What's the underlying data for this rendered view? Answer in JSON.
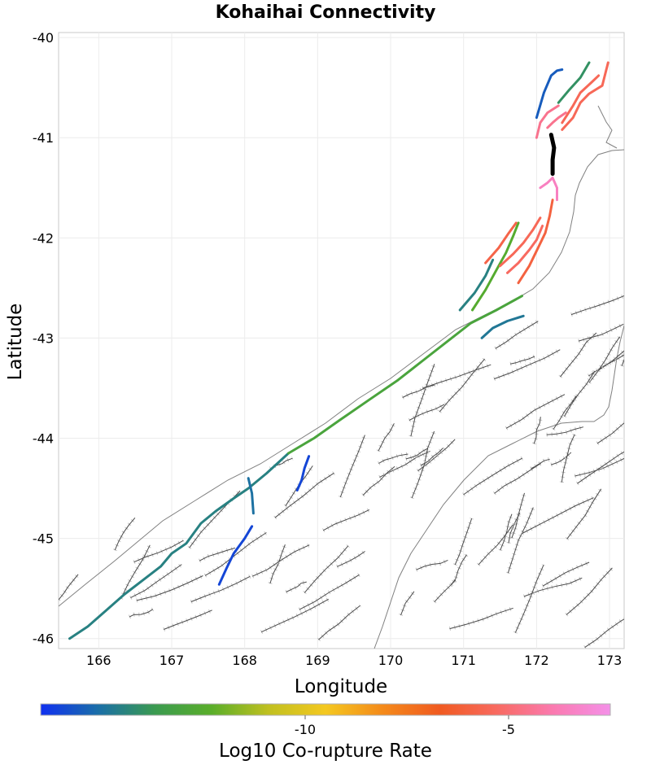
{
  "chart_data": {
    "type": "map",
    "title": "Kohaihai Connectivity",
    "xlabel": "Longitude",
    "ylabel": "Latitude",
    "xlim": [
      165.45,
      173.2
    ],
    "ylim": [
      -46.1,
      -39.95
    ],
    "xticks": [
      166,
      167,
      168,
      169,
      170,
      171,
      172,
      173
    ],
    "yticks": [
      -40,
      -41,
      -42,
      -43,
      -44,
      -45,
      -46
    ],
    "grid": true,
    "colorbar": {
      "label": "Log10 Co-rupture Rate",
      "min": -16.5,
      "max": -2.5,
      "ticks": [
        -10,
        -5
      ],
      "colors": [
        "#1030f0",
        "#1a6ea8",
        "#3a9a50",
        "#5aae2a",
        "#c0c020",
        "#f4c820",
        "#f48a1a",
        "#f05a20",
        "#f86a60",
        "#fa7ab0",
        "#f490e8"
      ]
    },
    "source_fault": {
      "name": "Kohaihai",
      "color": "#000000",
      "points": [
        [
          172.2,
          -40.97
        ],
        [
          172.24,
          -41.1
        ],
        [
          172.22,
          -41.22
        ],
        [
          172.22,
          -41.36
        ]
      ]
    },
    "corupture_sections": [
      {
        "value": -14.5,
        "points": [
          [
            165.6,
            -46.0
          ],
          [
            165.85,
            -45.88
          ],
          [
            166.1,
            -45.72
          ],
          [
            166.35,
            -45.56
          ],
          [
            166.6,
            -45.42
          ],
          [
            166.85,
            -45.28
          ],
          [
            167.0,
            -45.15
          ],
          [
            167.2,
            -45.05
          ],
          [
            167.4,
            -44.85
          ],
          [
            167.6,
            -44.73
          ],
          [
            167.85,
            -44.6
          ],
          [
            168.05,
            -44.5
          ],
          [
            168.3,
            -44.35
          ],
          [
            168.6,
            -44.15
          ]
        ]
      },
      {
        "value": -13.0,
        "points": [
          [
            168.6,
            -44.15
          ],
          [
            168.95,
            -44.0
          ],
          [
            169.3,
            -43.82
          ],
          [
            169.7,
            -43.62
          ],
          [
            170.1,
            -43.42
          ],
          [
            170.45,
            -43.22
          ],
          [
            170.8,
            -43.02
          ],
          [
            171.1,
            -42.85
          ],
          [
            171.45,
            -42.72
          ],
          [
            171.8,
            -42.58
          ]
        ]
      },
      {
        "value": -16.0,
        "points": [
          [
            167.65,
            -45.46
          ],
          [
            167.75,
            -45.3
          ],
          [
            167.85,
            -45.15
          ],
          [
            168.0,
            -45.0
          ],
          [
            168.1,
            -44.88
          ]
        ]
      },
      {
        "value": -16.0,
        "points": [
          [
            168.72,
            -44.52
          ],
          [
            168.78,
            -44.42
          ],
          [
            168.82,
            -44.3
          ],
          [
            168.88,
            -44.18
          ]
        ]
      },
      {
        "value": -15.0,
        "points": [
          [
            168.05,
            -44.4
          ],
          [
            168.1,
            -44.55
          ],
          [
            168.12,
            -44.75
          ]
        ]
      },
      {
        "value": -14.8,
        "points": [
          [
            171.25,
            -43.0
          ],
          [
            171.4,
            -42.9
          ],
          [
            171.6,
            -42.83
          ],
          [
            171.82,
            -42.78
          ]
        ]
      },
      {
        "value": -14.5,
        "points": [
          [
            170.95,
            -42.72
          ],
          [
            171.15,
            -42.55
          ],
          [
            171.3,
            -42.38
          ],
          [
            171.4,
            -42.22
          ]
        ]
      },
      {
        "value": -12.5,
        "points": [
          [
            171.12,
            -42.72
          ],
          [
            171.3,
            -42.52
          ],
          [
            171.45,
            -42.32
          ],
          [
            171.58,
            -42.15
          ],
          [
            171.68,
            -41.98
          ],
          [
            171.75,
            -41.85
          ]
        ]
      },
      {
        "value": -5.8,
        "points": [
          [
            171.3,
            -42.25
          ],
          [
            171.48,
            -42.1
          ],
          [
            171.62,
            -41.95
          ],
          [
            171.72,
            -41.85
          ]
        ]
      },
      {
        "value": -5.5,
        "points": [
          [
            171.5,
            -42.28
          ],
          [
            171.68,
            -42.16
          ],
          [
            171.82,
            -42.05
          ],
          [
            171.95,
            -41.92
          ],
          [
            172.05,
            -41.8
          ]
        ]
      },
      {
        "value": -5.3,
        "points": [
          [
            171.6,
            -42.35
          ],
          [
            171.75,
            -42.25
          ],
          [
            171.9,
            -42.12
          ],
          [
            172.0,
            -42.02
          ],
          [
            172.08,
            -41.88
          ]
        ]
      },
      {
        "value": -6.0,
        "points": [
          [
            171.75,
            -42.45
          ],
          [
            171.9,
            -42.28
          ],
          [
            172.02,
            -42.1
          ],
          [
            172.12,
            -41.95
          ],
          [
            172.18,
            -41.78
          ],
          [
            172.22,
            -41.62
          ]
        ]
      },
      {
        "value": -3.5,
        "points": [
          [
            172.05,
            -41.5
          ],
          [
            172.15,
            -41.45
          ],
          [
            172.22,
            -41.4
          ],
          [
            172.28,
            -41.5
          ],
          [
            172.28,
            -41.62
          ]
        ]
      },
      {
        "value": -15.5,
        "points": [
          [
            172.0,
            -40.8
          ],
          [
            172.1,
            -40.55
          ],
          [
            172.2,
            -40.38
          ],
          [
            172.28,
            -40.33
          ],
          [
            172.35,
            -40.32
          ]
        ]
      },
      {
        "value": -14.0,
        "points": [
          [
            172.3,
            -40.65
          ],
          [
            172.45,
            -40.52
          ],
          [
            172.6,
            -40.4
          ],
          [
            172.72,
            -40.25
          ]
        ]
      },
      {
        "value": -5.5,
        "points": [
          [
            172.35,
            -40.92
          ],
          [
            172.5,
            -40.8
          ],
          [
            172.6,
            -40.65
          ],
          [
            172.72,
            -40.56
          ],
          [
            172.9,
            -40.48
          ],
          [
            172.98,
            -40.25
          ]
        ]
      },
      {
        "value": -5.5,
        "points": [
          [
            172.35,
            -40.85
          ],
          [
            172.5,
            -40.68
          ],
          [
            172.6,
            -40.55
          ],
          [
            172.75,
            -40.45
          ],
          [
            172.85,
            -40.38
          ]
        ]
      },
      {
        "value": -4.5,
        "points": [
          [
            172.0,
            -41.0
          ],
          [
            172.05,
            -40.85
          ],
          [
            172.15,
            -40.75
          ],
          [
            172.3,
            -40.68
          ]
        ]
      },
      {
        "value": -4.5,
        "points": [
          [
            172.15,
            -40.9
          ],
          [
            172.22,
            -40.85
          ],
          [
            172.3,
            -40.8
          ],
          [
            172.4,
            -40.75
          ]
        ]
      }
    ]
  }
}
